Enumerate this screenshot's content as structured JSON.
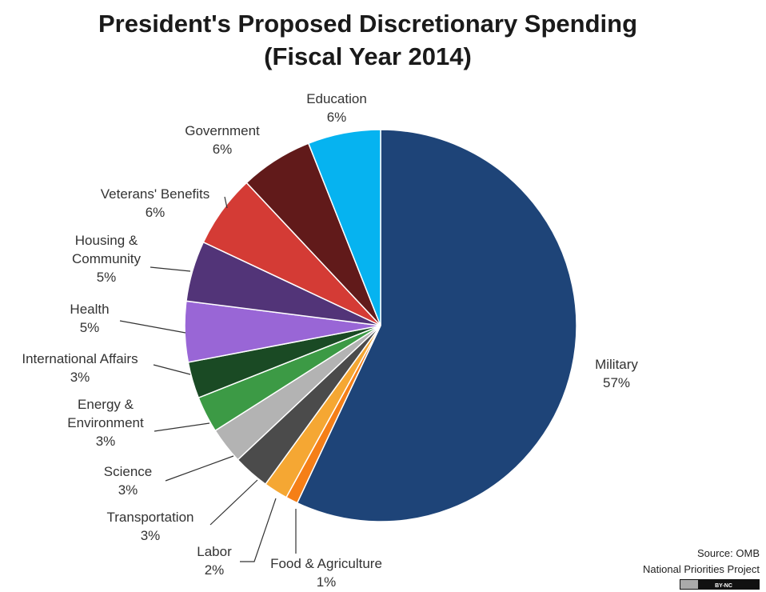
{
  "chart_data": {
    "type": "pie",
    "title_line1": "President's Proposed Discretionary Spending",
    "title_line2": "(Fiscal Year 2014)",
    "slices": [
      {
        "label": [
          "Military"
        ],
        "value": "57%",
        "pct": 57,
        "color": "#1e4478"
      },
      {
        "label": [
          "Food & Agriculture"
        ],
        "value": "1%",
        "pct": 1,
        "color": "#f57f17"
      },
      {
        "label": [
          "Labor"
        ],
        "value": "2%",
        "pct": 2,
        "color": "#f5a733"
      },
      {
        "label": [
          "Transportation"
        ],
        "value": "3%",
        "pct": 3,
        "color": "#4b4b4b"
      },
      {
        "label": [
          "Science"
        ],
        "value": "3%",
        "pct": 3,
        "color": "#b3b3b3"
      },
      {
        "label": [
          "Energy &",
          "Environment"
        ],
        "value": "3%",
        "pct": 3,
        "color": "#3c9a45"
      },
      {
        "label": [
          "International  Affairs"
        ],
        "value": "3%",
        "pct": 3,
        "color": "#1a4a24"
      },
      {
        "label": [
          "Health"
        ],
        "value": "5%",
        "pct": 5,
        "color": "#9966d6"
      },
      {
        "label": [
          "Housing &",
          "Community"
        ],
        "value": "5%",
        "pct": 5,
        "color": "#523478"
      },
      {
        "label": [
          "Veterans' Benefits"
        ],
        "value": "6%",
        "pct": 6,
        "color": "#d43b35"
      },
      {
        "label": [
          "Government"
        ],
        "value": "6%",
        "pct": 6,
        "color": "#611a1a"
      },
      {
        "label": [
          "Education"
        ],
        "value": "6%",
        "pct": 6,
        "color": "#06b3f0"
      }
    ],
    "source_line1": "Source: OMB",
    "source_line2": "National Priorities Project",
    "license": "BY-NC"
  }
}
